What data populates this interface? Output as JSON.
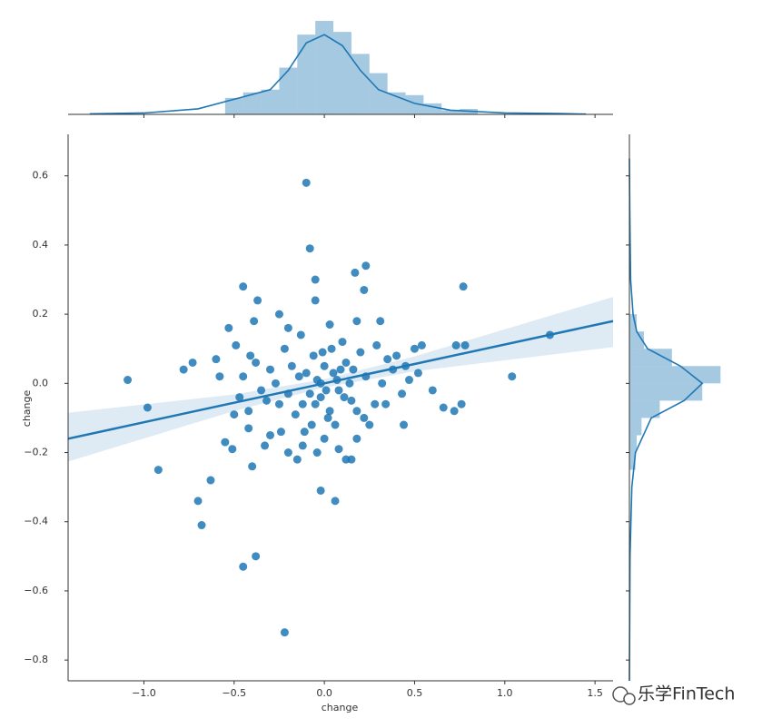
{
  "chart_data": [
    {
      "type": "scatter",
      "xlabel": "change",
      "ylabel": "change",
      "color": "#1f77b4",
      "xlim": [
        -1.42,
        1.6
      ],
      "ylim": [
        -0.86,
        0.72
      ],
      "xticks": [
        {
          "value": -1.0,
          "label": "−1.0"
        },
        {
          "value": -0.5,
          "label": "−0.5"
        },
        {
          "value": 0,
          "label": "0.0"
        },
        {
          "value": 0.5,
          "label": "0.5"
        },
        {
          "value": 1.0,
          "label": "1.0"
        },
        {
          "value": 1.5,
          "label": "1.5"
        }
      ],
      "yticks": [
        {
          "value": -0.8,
          "label": "−0.8"
        },
        {
          "value": -0.6,
          "label": "−0.6"
        },
        {
          "value": -0.4,
          "label": "−0.4"
        },
        {
          "value": -0.2,
          "label": "−0.2"
        },
        {
          "value": 0,
          "label": "0.0"
        },
        {
          "value": 0.2,
          "label": "0.2"
        },
        {
          "value": 0.4,
          "label": "0.4"
        },
        {
          "value": 0.6,
          "label": "0.6"
        }
      ],
      "x": [
        -0.1,
        -0.08,
        -0.05,
        -0.05,
        0.17,
        0.23,
        0.22,
        -0.45,
        -0.37,
        0.77,
        1.25,
        -1.09,
        -0.98,
        -0.92,
        -0.63,
        -0.7,
        -0.68,
        -0.45,
        -0.38,
        -0.22,
        -0.02,
        0.06,
        1.04,
        0.76,
        0.72,
        0.66,
        0.78,
        0.73,
        0.54,
        0.5,
        -0.78,
        -0.73,
        -0.6,
        -0.58,
        -0.53,
        -0.49,
        -0.41,
        -0.39,
        -0.25,
        -0.2,
        -0.13,
        0.03,
        0.18,
        0.31,
        -0.55,
        -0.51,
        -0.42,
        -0.4,
        -0.33,
        -0.3,
        -0.2,
        -0.15,
        -0.12,
        -0.04,
        0.0,
        0.08,
        0.12,
        0.15,
        0.18,
        0.25,
        0.34,
        0.43,
        0.47,
        0.45,
        0.4,
        0.38,
        0.35,
        0.29,
        0.23,
        0.2,
        0.15,
        0.12,
        0.1,
        0.08,
        0.05,
        0.03,
        0.0,
        -0.02,
        -0.04,
        -0.06,
        -0.08,
        -0.1,
        -0.12,
        -0.14,
        -0.16,
        -0.18,
        -0.2,
        -0.22,
        -0.25,
        -0.27,
        -0.3,
        -0.32,
        -0.35,
        -0.38,
        -0.42,
        -0.45,
        -0.5,
        -0.47,
        0.28,
        0.32,
        0.22,
        0.18,
        0.14,
        0.06,
        0.02,
        -0.01,
        0.04,
        0.09,
        -0.07,
        -0.11,
        -0.24,
        0.6,
        0.44,
        0.52,
        -0.02,
        0.01,
        0.07,
        -0.05,
        0.11,
        0.16
      ],
      "y": [
        0.58,
        0.39,
        0.3,
        0.24,
        0.32,
        0.34,
        0.27,
        0.28,
        0.24,
        0.28,
        0.14,
        0.01,
        -0.07,
        -0.25,
        -0.28,
        -0.34,
        -0.41,
        -0.53,
        -0.5,
        -0.72,
        -0.31,
        -0.34,
        0.02,
        -0.06,
        -0.08,
        -0.07,
        0.11,
        0.11,
        0.11,
        0.1,
        0.04,
        0.06,
        0.07,
        0.02,
        0.16,
        0.11,
        0.08,
        0.18,
        0.2,
        0.16,
        0.14,
        0.17,
        0.18,
        0.18,
        -0.17,
        -0.19,
        -0.13,
        -0.24,
        -0.18,
        -0.15,
        -0.2,
        -0.22,
        -0.18,
        -0.2,
        -0.16,
        -0.19,
        -0.22,
        -0.22,
        -0.16,
        -0.12,
        -0.06,
        -0.03,
        0.01,
        0.05,
        0.08,
        0.04,
        0.07,
        0.11,
        0.02,
        0.09,
        -0.05,
        0.06,
        0.12,
        -0.02,
        0.03,
        -0.08,
        0.05,
        -0.04,
        0.01,
        0.08,
        -0.03,
        0.03,
        -0.06,
        0.02,
        -0.09,
        0.05,
        -0.03,
        0.1,
        -0.06,
        0.0,
        0.04,
        -0.05,
        -0.02,
        0.06,
        -0.08,
        0.02,
        -0.09,
        -0.04,
        -0.06,
        0.0,
        -0.1,
        -0.08,
        0.0,
        -0.12,
        -0.1,
        0.09,
        0.1,
        0.04,
        -0.12,
        -0.14,
        -0.14,
        -0.02,
        -0.12,
        0.03,
        0.0,
        -0.02,
        0.01,
        -0.06,
        -0.04,
        0.04
      ],
      "fit": {
        "x": [
          -1.42,
          -0.5,
          0,
          0.5,
          1.6
        ],
        "y": [
          -0.16,
          -0.056,
          0.0,
          0.056,
          0.18
        ],
        "lower": [
          -0.226,
          -0.08,
          -0.012,
          0.035,
          0.105
        ],
        "upper": [
          -0.085,
          -0.032,
          0.012,
          0.078,
          0.25
        ]
      }
    },
    {
      "type": "histogram",
      "orientation": "vertical",
      "color": "#1f77b4",
      "xlim": [
        -1.42,
        1.6
      ],
      "ylim": [
        0,
        3.5
      ],
      "bins": [
        -0.55,
        -0.45,
        -0.35,
        -0.25,
        -0.15,
        -0.05,
        0.05,
        0.15,
        0.25,
        0.35,
        0.45,
        0.55,
        0.65,
        0.75,
        0.85
      ],
      "counts": [
        0.6,
        0.8,
        0.9,
        1.7,
        2.9,
        3.4,
        3.0,
        2.2,
        1.5,
        0.8,
        0.7,
        0.4,
        0.15,
        0.2
      ],
      "kde": {
        "x": [
          -1.3,
          -1.0,
          -0.7,
          -0.5,
          -0.3,
          -0.2,
          -0.1,
          0,
          0.1,
          0.2,
          0.3,
          0.5,
          0.7,
          1.0,
          1.3,
          1.45
        ],
        "y": [
          0.02,
          0.05,
          0.2,
          0.55,
          0.9,
          1.6,
          2.6,
          2.9,
          2.5,
          1.6,
          0.9,
          0.4,
          0.15,
          0.05,
          0.03,
          0.01
        ]
      }
    },
    {
      "type": "histogram",
      "orientation": "horizontal",
      "color": "#1f77b4",
      "ylim": [
        -0.86,
        0.72
      ],
      "xlim": [
        0,
        8
      ],
      "bins": [
        -0.25,
        -0.2,
        -0.15,
        -0.1,
        -0.05,
        0,
        0.05,
        0.1,
        0.15,
        0.2
      ],
      "counts": [
        0.5,
        0.6,
        1.0,
        2.5,
        6.0,
        7.5,
        3.5,
        1.2,
        0.6
      ],
      "kde": {
        "y": [
          -0.86,
          -0.5,
          -0.3,
          -0.2,
          -0.1,
          -0.05,
          0,
          0.05,
          0.1,
          0.15,
          0.2,
          0.3,
          0.5,
          0.65
        ],
        "x": [
          0,
          0.05,
          0.2,
          0.5,
          1.8,
          4.5,
          6.0,
          4.2,
          1.5,
          0.6,
          0.3,
          0.1,
          0.03,
          0
        ]
      }
    }
  ],
  "watermark": "乐学FinTech"
}
